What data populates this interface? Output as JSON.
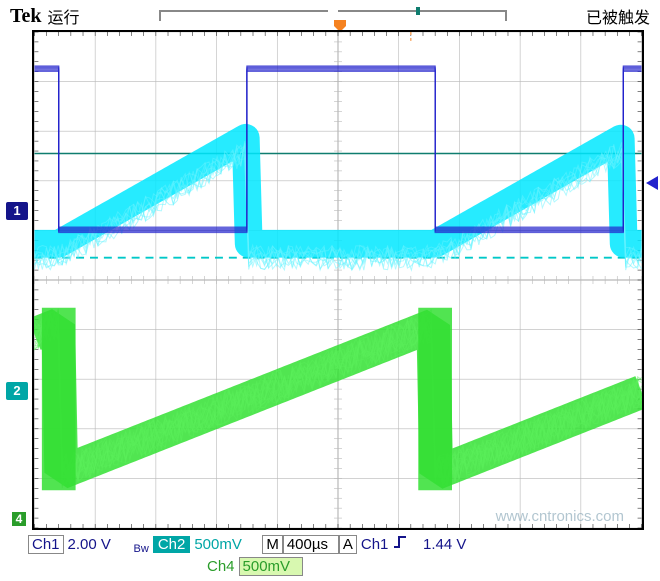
{
  "header": {
    "brand": "Tek",
    "run_label": "运行",
    "trig_status": "已被触发"
  },
  "trigger_marker": {
    "letter": "T",
    "color": "#f58220"
  },
  "graticule": {
    "cols": 10,
    "rows": 10,
    "border_color": "#000000",
    "grid_color": "#b8b8b8",
    "minor_ticks_per_div": 5,
    "background": "#ffffff"
  },
  "channels": {
    "ch1": {
      "color_dark": "#14148a",
      "color": "#2222cc",
      "zero_div_from_top": 3.6,
      "scale": "2.00 V"
    },
    "ch2": {
      "badge_bg": "#00a6a6",
      "color": "#00ffff",
      "zero_div_from_top": 7.2,
      "scale": "500mV"
    },
    "ch4": {
      "badge_bg": "#2a9d2a",
      "color": "#33e033",
      "zero_div_from_top": 9.8,
      "scale": "500mV"
    },
    "cursor_line": {
      "color": "#0f7d6f",
      "div_from_top": 2.45
    },
    "dashed_line": {
      "color": "#00c8c8",
      "div_from_top": 4.55
    }
  },
  "timebase": {
    "scale": "400µs",
    "label": "M"
  },
  "trigger": {
    "label": "A",
    "source": "Ch1",
    "slope": "rising",
    "level": "1.44 V",
    "marker_color": "#2222cc",
    "marker_div_from_top": 3.0,
    "cursor_x_div": 6.2
  },
  "waveforms": {
    "period_divs": 6.2,
    "phase_offset_divs": -2.7,
    "ch1_square": {
      "high_div": 0.75,
      "low_div": 4.0,
      "duty": 0.5,
      "thickness": 6
    },
    "ch2_ramp": {
      "low_div": 4.55,
      "high_div": 2.4,
      "flat_div": 4.55,
      "thickness": 28
    },
    "ch4_ramp": {
      "low_div": 8.9,
      "high_div": 5.9,
      "thickness": 34,
      "color": "#33e033",
      "edge_color": "#1aa01a"
    }
  },
  "bottombar": {
    "ch1_label": "Ch1",
    "ch2_label": "Ch2",
    "ch4_label": "Ch4",
    "bw_icon": "Bw"
  },
  "watermark": {
    "text": "www.cntronics.com",
    "color": "#8aa8b8"
  }
}
